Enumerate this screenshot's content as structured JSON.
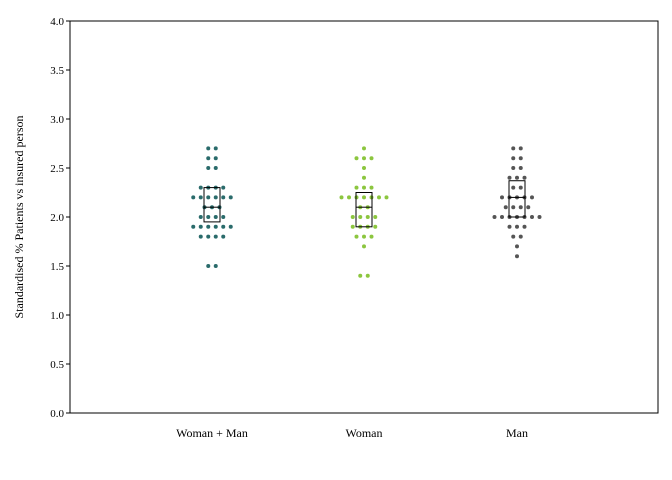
{
  "chart_data": {
    "type": "scatter",
    "subtype": "dot-strip",
    "title": "",
    "xlabel": "",
    "ylabel": "Standardised % Patients vs insured person",
    "ylim": [
      0.0,
      4.0
    ],
    "yticks": [
      "0.0",
      "0.5",
      "1.0",
      "1.5",
      "2.0",
      "2.5",
      "3.0",
      "3.5",
      "4.0"
    ],
    "categories": [
      "Woman + Man",
      "Woman",
      "Man"
    ],
    "grid": false,
    "legend": "none",
    "series": [
      {
        "category": "Woman + Man",
        "color": "#2a6b6b",
        "values": [
          2.7,
          2.7,
          2.6,
          2.6,
          2.5,
          2.5,
          2.3,
          2.3,
          2.3,
          2.3,
          2.2,
          2.2,
          2.2,
          2.2,
          2.2,
          2.2,
          2.1,
          2.1,
          2.1,
          2.0,
          2.0,
          2.0,
          2.0,
          1.9,
          1.9,
          1.9,
          1.9,
          1.9,
          1.9,
          1.8,
          1.8,
          1.8,
          1.8,
          1.5,
          1.5
        ],
        "box": {
          "q1": 1.95,
          "median": 2.1,
          "q3": 2.3
        }
      },
      {
        "category": "Woman",
        "color": "#8cc63f",
        "values": [
          2.7,
          2.6,
          2.6,
          2.6,
          2.5,
          2.4,
          2.3,
          2.3,
          2.3,
          2.2,
          2.2,
          2.2,
          2.2,
          2.2,
          2.2,
          2.2,
          2.1,
          2.1,
          2.0,
          2.0,
          2.0,
          2.0,
          1.9,
          1.9,
          1.9,
          1.9,
          1.8,
          1.8,
          1.8,
          1.7,
          1.4,
          1.4
        ],
        "box": {
          "q1": 1.9,
          "median": 2.1,
          "q3": 2.25
        }
      },
      {
        "category": "Man",
        "color": "#555555",
        "values": [
          2.7,
          2.7,
          2.6,
          2.6,
          2.5,
          2.5,
          2.4,
          2.4,
          2.4,
          2.3,
          2.3,
          2.2,
          2.2,
          2.2,
          2.2,
          2.2,
          2.1,
          2.1,
          2.1,
          2.1,
          2.0,
          2.0,
          2.0,
          2.0,
          2.0,
          2.0,
          2.0,
          1.9,
          1.9,
          1.9,
          1.8,
          1.8,
          1.7,
          1.6
        ],
        "box": {
          "q1": 2.0,
          "median": 2.2,
          "q3": 2.37
        }
      }
    ]
  }
}
